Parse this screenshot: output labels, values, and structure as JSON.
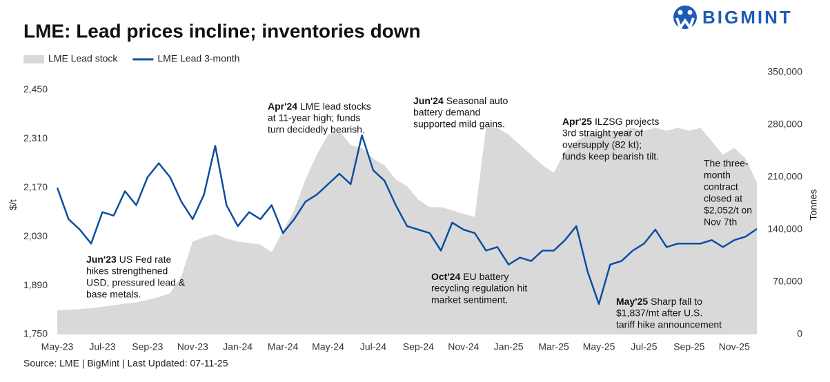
{
  "chart_data": {
    "type": "line",
    "title": "LME: Lead prices incline; inventories down",
    "brand": "BIGMINT",
    "source": "Source: LME | BigMint | Last Updated: 07-11-25",
    "ylabel": "$/t",
    "y2label": "Tonnes",
    "legend": "top-left",
    "categories": [
      "May-23",
      null,
      null,
      null,
      "Jul-23",
      null,
      null,
      null,
      "Sep-23",
      null,
      null,
      null,
      "Nov-23",
      null,
      null,
      null,
      "Jan-24",
      null,
      null,
      null,
      "Mar-24",
      null,
      null,
      null,
      "May-24",
      null,
      null,
      null,
      "Jul-24",
      null,
      null,
      null,
      "Sep-24",
      null,
      null,
      null,
      "Nov-24",
      null,
      null,
      null,
      "Jan-25",
      null,
      null,
      null,
      "Mar-25",
      null,
      null,
      null,
      "May-25",
      null,
      null,
      null,
      "Jul-25",
      null,
      null,
      null,
      "Sep-25",
      null,
      null,
      null,
      "Nov-25",
      null,
      null
    ],
    "series": [
      {
        "name": "LME Lead stock",
        "color": "#d9d9d9",
        "axis": "y2",
        "style": "area",
        "values": [
          32000,
          33000,
          34000,
          35000,
          37000,
          39000,
          41000,
          43000,
          46000,
          50000,
          55000,
          78000,
          124000,
          130000,
          134000,
          128000,
          124000,
          122000,
          120000,
          110000,
          138000,
          166000,
          207000,
          240000,
          267000,
          272000,
          253000,
          249000,
          235000,
          226000,
          207000,
          198000,
          180000,
          170000,
          170000,
          166000,
          161000,
          157000,
          276000,
          276000,
          267000,
          253000,
          240000,
          226000,
          216000,
          244000,
          258000,
          267000,
          267000,
          272000,
          272000,
          276000,
          272000,
          276000,
          272000,
          276000,
          272000,
          276000,
          258000,
          240000,
          249000,
          235000,
          203000
        ]
      },
      {
        "name": "LME Lead 3-month",
        "color": "#0b4ea2",
        "style": "line",
        "values": [
          2170,
          2080,
          2050,
          2010,
          2100,
          2090,
          2160,
          2120,
          2200,
          2240,
          2200,
          2130,
          2080,
          2150,
          2290,
          2120,
          2060,
          2100,
          2080,
          2120,
          2040,
          2080,
          2130,
          2150,
          2180,
          2210,
          2180,
          2320,
          2220,
          2190,
          2120,
          2060,
          2050,
          2040,
          1990,
          2070,
          2050,
          2040,
          1990,
          2000,
          1950,
          1970,
          1960,
          1990,
          1990,
          2020,
          2060,
          1930,
          1837,
          1950,
          1960,
          1990,
          2010,
          2050,
          2000,
          2010,
          2010,
          2010,
          2020,
          2000,
          2020,
          2030,
          2052
        ]
      }
    ],
    "ylim": [
      1750,
      2500
    ],
    "yticks": [
      {
        "value": 1750,
        "label": "1,750"
      },
      {
        "value": 1890,
        "label": "1,890"
      },
      {
        "value": 2030,
        "label": "2,030"
      },
      {
        "value": 2170,
        "label": "2,170"
      },
      {
        "value": 2310,
        "label": "2,310"
      },
      {
        "value": 2450,
        "label": "2,450"
      }
    ],
    "y2lim": [
      0,
      350000
    ],
    "y2ticks": [
      0,
      {
        "value": 70000,
        "label": "70,000"
      },
      {
        "value": 140000,
        "label": "140,000"
      },
      {
        "value": 210000,
        "label": "210,000"
      },
      {
        "value": 280000,
        "label": "280,000"
      },
      {
        "value": 350000,
        "label": "350,000"
      }
    ],
    "annotations": [
      {
        "bold": "Jun'23",
        "lines": [
          "US Fed rate",
          "hikes strengthened",
          "USD, pressured lead &",
          "base metals."
        ]
      },
      {
        "bold": "Apr'24",
        "lines": [
          "LME lead stocks",
          "at 11-year high; funds",
          "turn decidedly bearish."
        ]
      },
      {
        "bold": "Jun'24",
        "lines": [
          "Seasonal auto",
          "battery demand",
          "supported mild gains."
        ]
      },
      {
        "bold": "Oct'24",
        "lines": [
          "EU battery",
          "recycling regulation hit",
          "market sentiment."
        ]
      },
      {
        "bold": "Apr'25",
        "lines": [
          "ILZSG projects",
          "3rd straight year of",
          "oversupply (82 kt);",
          "funds keep bearish tilt."
        ]
      },
      {
        "bold": "May'25",
        "lines": [
          "Sharp fall to",
          "$1,837/mt after U.S.",
          "tariff hike announcement"
        ]
      },
      {
        "lines": [
          "The three-",
          "month",
          "contract",
          "closed at",
          "$2,052/t on",
          "Nov 7th"
        ]
      }
    ]
  }
}
